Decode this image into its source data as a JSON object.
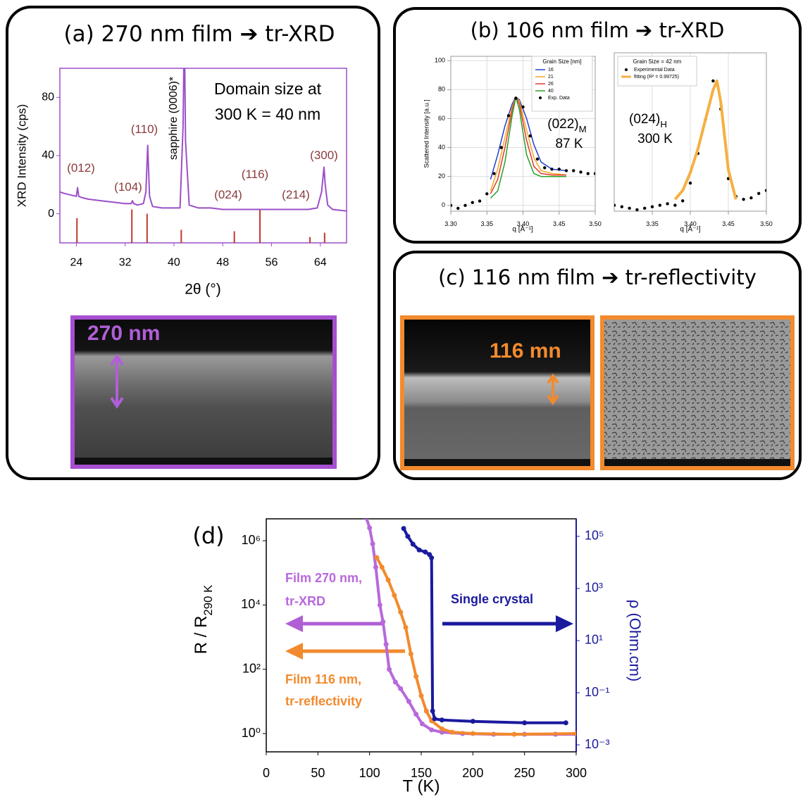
{
  "panels": [
    "(a) 270 nm film ➔ tr-XRD",
    "(b) 106 nm film ➔ tr-XRD",
    "(c) 116 nm film ➔ tr-reflectivity",
    "(d)"
  ],
  "images": [
    {
      "label": "270 nm"
    },
    {
      "label": "116 mn"
    }
  ],
  "chart_data": [
    {
      "type": "line",
      "xlabel": "2θ (°)",
      "ylabel": "XRD Intensity (cps)",
      "frame_color": "#9b4fc9",
      "xlim": [
        21.3,
        68.3
      ],
      "ylim": [
        -20,
        100
      ],
      "xticks": [
        24,
        32,
        40,
        48,
        56,
        64
      ],
      "yticks": [
        0,
        40,
        80
      ],
      "grid": false,
      "series": [
        {
          "color": "#9b4fc9",
          "style": "line",
          "x": [
            21.3,
            22,
            23,
            24,
            24.2,
            24.4,
            25,
            26,
            28,
            30,
            32,
            33,
            33.2,
            33.4,
            34,
            35,
            35.4,
            35.7,
            36,
            36.5,
            38,
            40,
            41,
            41.5,
            41.7,
            41.9,
            42.5,
            44,
            46,
            48,
            50,
            52,
            54,
            56,
            58,
            60,
            62,
            63.5,
            64.2,
            64.6,
            64.8,
            65.2,
            66,
            68,
            68.3
          ],
          "values": [
            15,
            14,
            13,
            12,
            18,
            12,
            11,
            10,
            9,
            8,
            7,
            7,
            9,
            7,
            6,
            7,
            15,
            47,
            12,
            5,
            4,
            4,
            4,
            60,
            130,
            50,
            6,
            4,
            4,
            3,
            3,
            3,
            3,
            3,
            3,
            3,
            3,
            4,
            15,
            32,
            20,
            6,
            3,
            2,
            2
          ]
        }
      ],
      "sticks": {
        "color": "#c0392b",
        "x": [
          24.1,
          33.1,
          35.6,
          41.2,
          49.9,
          54.1,
          62.3,
          64.7
        ],
        "values": [
          -3,
          3,
          0,
          -11,
          -12,
          3,
          -16,
          -13
        ]
      },
      "annotations": [
        {
          "text": "(012)"
        },
        {
          "text": "(104)"
        },
        {
          "text": "(110)"
        },
        {
          "text": "sapphire (0006)*"
        },
        {
          "text": "(024)"
        },
        {
          "text": "(116)"
        },
        {
          "text": "(214)"
        },
        {
          "text": "(300)"
        },
        {
          "text": "Domain size at"
        },
        {
          "text": "300 K = 40 nm"
        }
      ]
    },
    {
      "type": "line",
      "xlabel": "q [Å⁻¹]",
      "ylabel": "Scattered Intensity [a.u.]",
      "frame_color": "#999999",
      "xlim": [
        3.3,
        3.5
      ],
      "ylim": [
        -4,
        103
      ],
      "grid": true,
      "xticks": [
        {
          "value": 3.3,
          "label": "3.30"
        },
        {
          "value": 3.35,
          "label": "3.35"
        },
        {
          "value": 3.4,
          "label": "3.40"
        },
        {
          "value": 3.45,
          "label": "3.45"
        },
        {
          "value": 3.5,
          "label": "3.50"
        }
      ],
      "yticks": [
        0,
        20,
        40,
        60,
        80,
        100
      ],
      "legend_title": "Grain Size [nm]",
      "series": [
        {
          "name": "16",
          "color": "#1f3fd6",
          "style": "line",
          "x": [
            3.355,
            3.365,
            3.375,
            3.385,
            3.39,
            3.395,
            3.405,
            3.415,
            3.425,
            3.44,
            3.46
          ],
          "values": [
            18,
            35,
            55,
            70,
            75,
            73,
            60,
            42,
            30,
            25,
            24
          ]
        },
        {
          "name": "21",
          "color": "#f5a623",
          "style": "line",
          "x": [
            3.355,
            3.365,
            3.375,
            3.385,
            3.39,
            3.395,
            3.405,
            3.415,
            3.425,
            3.44,
            3.46
          ],
          "values": [
            10,
            25,
            47,
            68,
            75,
            72,
            52,
            33,
            24,
            22,
            21
          ]
        },
        {
          "name": "26",
          "color": "#e03a2a",
          "style": "line",
          "x": [
            3.355,
            3.365,
            3.375,
            3.385,
            3.39,
            3.395,
            3.405,
            3.415,
            3.425,
            3.44,
            3.46
          ],
          "values": [
            8,
            18,
            40,
            66,
            75,
            70,
            45,
            27,
            22,
            21,
            21
          ]
        },
        {
          "name": "40",
          "color": "#2aa02a",
          "style": "line",
          "x": [
            3.355,
            3.365,
            3.375,
            3.385,
            3.39,
            3.395,
            3.405,
            3.415,
            3.425,
            3.44,
            3.46
          ],
          "values": [
            5,
            10,
            30,
            62,
            75,
            66,
            35,
            22,
            20,
            20,
            20
          ]
        },
        {
          "name": "Exp. Data",
          "color": "#000000",
          "style": "dots",
          "x": [
            3.3,
            3.31,
            3.32,
            3.33,
            3.34,
            3.35,
            3.36,
            3.37,
            3.38,
            3.39,
            3.4,
            3.41,
            3.42,
            3.43,
            3.44,
            3.45,
            3.46,
            3.47,
            3.48,
            3.49,
            3.5
          ],
          "values": [
            0,
            -2,
            0,
            2,
            3,
            8,
            22,
            40,
            62,
            74,
            68,
            48,
            32,
            26,
            25,
            25,
            24,
            24,
            23,
            22,
            22
          ]
        }
      ],
      "annotations": [
        {
          "text": "(022)",
          "sub": "M"
        },
        {
          "text": "87 K"
        }
      ]
    },
    {
      "type": "line",
      "xlabel": "q [Å⁻¹]",
      "frame_color": "#999999",
      "xlim": [
        3.3,
        3.5
      ],
      "ylim": [
        -4,
        103
      ],
      "grid": true,
      "xticks": [
        {
          "value": 3.35,
          "label": "3.35"
        },
        {
          "value": 3.4,
          "label": "3.40"
        },
        {
          "value": 3.45,
          "label": "3.45"
        },
        {
          "value": 3.5,
          "label": "3.50"
        }
      ],
      "legend_title": "Grain Size = 42 nm",
      "series": [
        {
          "name": "Experimental Data",
          "color": "#000000",
          "style": "dots",
          "x": [
            3.3,
            3.31,
            3.32,
            3.33,
            3.34,
            3.35,
            3.36,
            3.37,
            3.38,
            3.39,
            3.4,
            3.41,
            3.42,
            3.43,
            3.44,
            3.45,
            3.46,
            3.47,
            3.48,
            3.49,
            3.5
          ],
          "values": [
            0,
            -1,
            -2,
            -3,
            -2,
            -1,
            0,
            1,
            0,
            3,
            15,
            35,
            58,
            84,
            65,
            18,
            6,
            4,
            5,
            8,
            10
          ]
        },
        {
          "name": "fitting (R² = 0.99725)",
          "color": "#f5b041",
          "style": "line",
          "x": [
            3.38,
            3.39,
            3.4,
            3.41,
            3.42,
            3.43,
            3.435,
            3.44,
            3.45,
            3.46
          ],
          "values": [
            4,
            10,
            22,
            38,
            58,
            78,
            84,
            70,
            24,
            4
          ]
        }
      ],
      "annotations": [
        {
          "text": "(024)",
          "sub": "H"
        },
        {
          "text": "300 K"
        }
      ]
    },
    {
      "type": "line",
      "xlabel": "T (K)",
      "ylabel": {
        "text": "R / R",
        "sub": "290 K"
      },
      "y2label": "ρ (Ohm.cm)",
      "frame_color": "#000000",
      "xlim": [
        0,
        300
      ],
      "ylim": [
        0.27,
        4800000
      ],
      "y2lim": [
        0.00054,
        470000
      ],
      "ylog": true,
      "y2log": true,
      "grid": false,
      "xticks": [
        0,
        50,
        100,
        150,
        200,
        250,
        300
      ],
      "yticks": [
        {
          "value": 1,
          "label": "10⁰"
        },
        {
          "value": 100,
          "label": "10²"
        },
        {
          "value": 10000,
          "label": "10⁴"
        },
        {
          "value": 1000000,
          "label": "10⁶"
        }
      ],
      "y2ticks": [
        {
          "value": 0.001,
          "label": "10⁻³"
        },
        {
          "value": 0.1,
          "label": "10⁻¹"
        },
        {
          "value": 10,
          "label": "10¹"
        },
        {
          "value": 1000,
          "label": "10³"
        },
        {
          "value": 100000,
          "label": "10⁵"
        }
      ],
      "series": [
        {
          "color": "#b868dc",
          "style": "line+markers",
          "x": [
            97,
            100,
            103,
            106,
            110,
            113,
            116,
            119,
            125,
            130,
            138,
            145,
            151,
            160,
            170,
            190,
            220,
            250,
            280,
            300
          ],
          "values": [
            5000000,
            2500000,
            800000,
            150000,
            10000,
            3000,
            600,
            100,
            40,
            25,
            10,
            4,
            2,
            1.3,
            1.1,
            1,
            0.95,
            0.95,
            0.95,
            0.95
          ]
        },
        {
          "color": "#f28a2e",
          "style": "line+markers",
          "x": [
            107,
            112,
            118,
            124,
            130,
            135,
            140,
            145,
            150,
            155,
            160,
            170,
            180,
            200,
            240,
            300
          ],
          "values": [
            300000,
            150000,
            60000,
            20000,
            6000,
            2000,
            300,
            60,
            15,
            5,
            2.5,
            1.4,
            1.1,
            1,
            0.95,
            1
          ]
        },
        {
          "color": "#1a1a9e",
          "style": "line+markers",
          "axis": "y2",
          "x": [
            133,
            137,
            142,
            148,
            154,
            158,
            160,
            161,
            163,
            170,
            200,
            250,
            290
          ],
          "values": [
            200000,
            100000,
            50000,
            30000,
            25000,
            20000,
            15000,
            0.02,
            0.01,
            0.009,
            0.008,
            0.007,
            0.007
          ]
        }
      ],
      "annotations": [
        {
          "text": "Film 270 nm,"
        },
        {
          "text": "tr-XRD"
        },
        {
          "text": "Single crystal"
        },
        {
          "text": "Film 116 nm,"
        },
        {
          "text": "tr-reflectivity"
        }
      ]
    }
  ]
}
